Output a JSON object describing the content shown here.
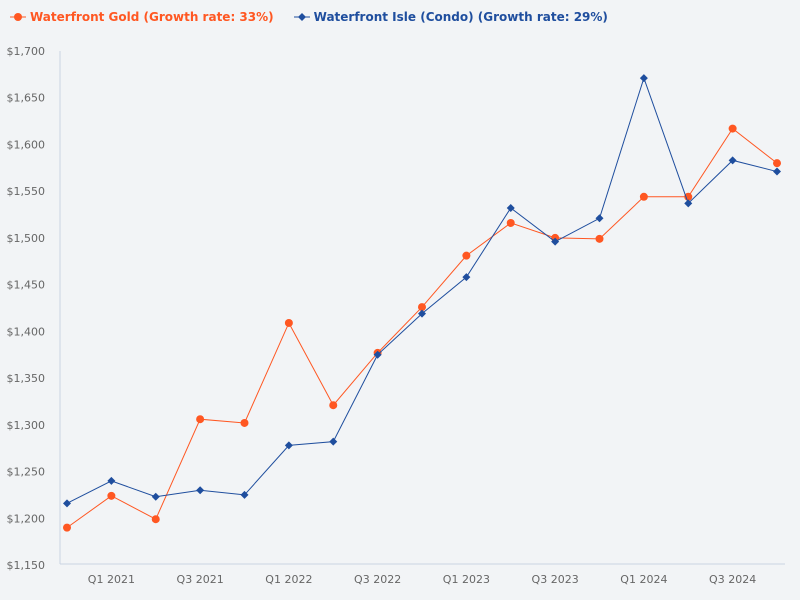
{
  "chart_data": {
    "type": "line",
    "x": [
      "Q4 2020",
      "Q1 2021",
      "Q2 2021",
      "Q3 2021",
      "Q4 2021",
      "Q1 2022",
      "Q2 2022",
      "Q3 2022",
      "Q4 2022",
      "Q1 2023",
      "Q2 2023",
      "Q3 2023",
      "Q4 2023",
      "Q1 2024",
      "Q2 2024",
      "Q3 2024",
      "Q4 2024"
    ],
    "x_tick_labels": [
      "Q1 2021",
      "Q3 2021",
      "Q1 2022",
      "Q3 2022",
      "Q1 2023",
      "Q3 2023",
      "Q1 2024",
      "Q3 2024"
    ],
    "ylim": [
      1150,
      1700
    ],
    "y_ticks": [
      "$1,150",
      "$1,200",
      "$1,250",
      "$1,300",
      "$1,350",
      "$1,400",
      "$1,450",
      "$1,500",
      "$1,550",
      "$1,600",
      "$1,650",
      "$1,700"
    ],
    "grid": false,
    "legend_position": "top-left",
    "series": [
      {
        "name": "Waterfront Gold (Growth rate: 33%)",
        "color": "#ff5722",
        "marker": "circle",
        "values": [
          1190,
          1224,
          1199,
          1306,
          1302,
          1409,
          1321,
          1377,
          1426,
          1481,
          1516,
          1500,
          1499,
          1544,
          1544,
          1617,
          1580
        ]
      },
      {
        "name": "Waterfront Isle (Condo) (Growth rate: 29%)",
        "color": "#1f4e9e",
        "marker": "diamond",
        "values": [
          1216,
          1240,
          1223,
          1230,
          1225,
          1278,
          1282,
          1375,
          1419,
          1458,
          1532,
          1496,
          1521,
          1671,
          1537,
          1583,
          1571
        ]
      }
    ]
  }
}
